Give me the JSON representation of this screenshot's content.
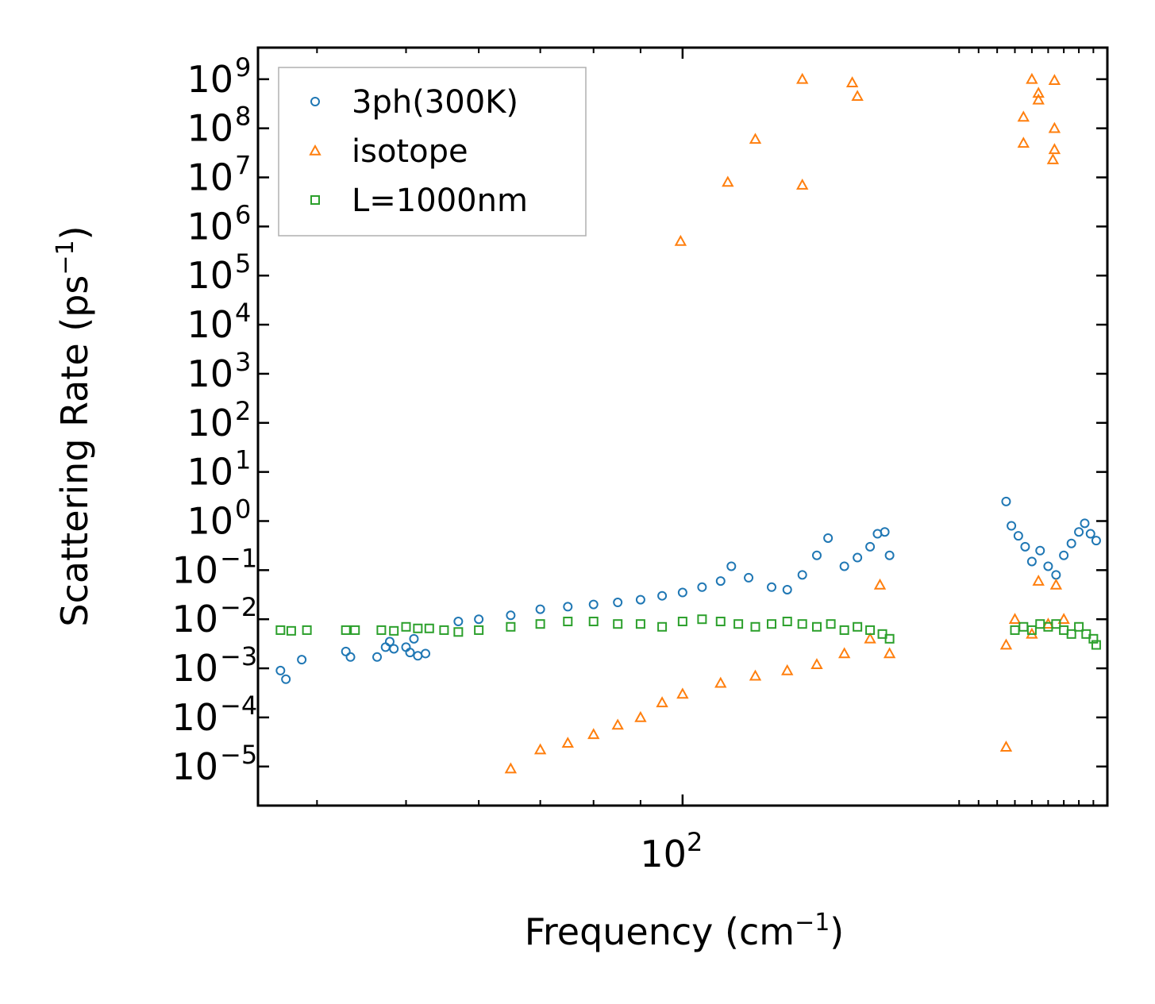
{
  "chart_data": {
    "type": "scatter",
    "xscale": "log",
    "yscale": "log",
    "xlim": [
      34.5,
      290
    ],
    "ylim": [
      1.6e-06,
      4400000000.0
    ],
    "xlabel": "Frequency (cm",
    "xlabel_sup": "−1",
    "xlabel_end": ")",
    "ylabel": "Scattering Rate (ps",
    "ylabel_sup": "−1",
    "ylabel_end": ")",
    "x_ticks": [
      {
        "base": "10",
        "exp": "2",
        "value": 100
      }
    ],
    "y_ticks": [
      {
        "base": "10",
        "exp": "9",
        "value": 1000000000.0
      },
      {
        "base": "10",
        "exp": "8",
        "value": 100000000.0
      },
      {
        "base": "10",
        "exp": "7",
        "value": 10000000.0
      },
      {
        "base": "10",
        "exp": "6",
        "value": 1000000.0
      },
      {
        "base": "10",
        "exp": "5",
        "value": 100000.0
      },
      {
        "base": "10",
        "exp": "4",
        "value": 10000.0
      },
      {
        "base": "10",
        "exp": "3",
        "value": 1000.0
      },
      {
        "base": "10",
        "exp": "2",
        "value": 100.0
      },
      {
        "base": "10",
        "exp": "1",
        "value": 10.0
      },
      {
        "base": "10",
        "exp": "0",
        "value": 1
      },
      {
        "base": "10",
        "exp": "−1",
        "value": 0.1
      },
      {
        "base": "10",
        "exp": "−2",
        "value": 0.01
      },
      {
        "base": "10",
        "exp": "−3",
        "value": 0.001
      },
      {
        "base": "10",
        "exp": "−4",
        "value": 0.0001
      },
      {
        "base": "10",
        "exp": "−5",
        "value": 1e-05
      }
    ],
    "legend_position": "top-left",
    "series": [
      {
        "name": "3ph(300K)",
        "color": "#1f77b4",
        "marker": "circle",
        "points": [
          [
            36.5,
            0.0009
          ],
          [
            37.0,
            0.0006
          ],
          [
            38.5,
            0.0015
          ],
          [
            43.0,
            0.0022
          ],
          [
            43.5,
            0.0017
          ],
          [
            46.5,
            0.0017
          ],
          [
            47.5,
            0.0027
          ],
          [
            48.0,
            0.0035
          ],
          [
            48.5,
            0.0025
          ],
          [
            50.0,
            0.0027
          ],
          [
            50.5,
            0.0021
          ],
          [
            51.5,
            0.0018
          ],
          [
            51.0,
            0.004
          ],
          [
            52.5,
            0.002
          ],
          [
            57.0,
            0.009
          ],
          [
            60.0,
            0.01
          ],
          [
            65.0,
            0.012
          ],
          [
            70.0,
            0.016
          ],
          [
            75.0,
            0.018
          ],
          [
            80.0,
            0.02
          ],
          [
            85.0,
            0.022
          ],
          [
            90.0,
            0.025
          ],
          [
            95.0,
            0.03
          ],
          [
            100.0,
            0.035
          ],
          [
            105.0,
            0.045
          ],
          [
            110.0,
            0.06
          ],
          [
            113.0,
            0.12
          ],
          [
            118.0,
            0.07
          ],
          [
            125.0,
            0.045
          ],
          [
            130.0,
            0.04
          ],
          [
            135.0,
            0.08
          ],
          [
            140.0,
            0.2
          ],
          [
            144.0,
            0.45
          ],
          [
            150.0,
            0.12
          ],
          [
            155.0,
            0.18
          ],
          [
            160.0,
            0.3
          ],
          [
            163.0,
            0.55
          ],
          [
            166.0,
            0.6
          ],
          [
            168.0,
            0.2
          ],
          [
            225.0,
            2.5
          ],
          [
            228.0,
            0.8
          ],
          [
            232.0,
            0.5
          ],
          [
            236.0,
            0.3
          ],
          [
            240.0,
            0.15
          ],
          [
            245.0,
            0.25
          ],
          [
            250.0,
            0.12
          ],
          [
            255.0,
            0.08
          ],
          [
            260.0,
            0.2
          ],
          [
            265.0,
            0.35
          ],
          [
            270.0,
            0.6
          ],
          [
            274.0,
            0.9
          ],
          [
            278.0,
            0.55
          ],
          [
            282.0,
            0.4
          ]
        ]
      },
      {
        "name": "isotope",
        "color": "#ff7f0e",
        "marker": "triangle",
        "points": [
          [
            99.5,
            500000
          ],
          [
            112.0,
            8000000
          ],
          [
            120.0,
            60000000
          ],
          [
            135.0,
            7000000
          ],
          [
            135.0,
            1000000000
          ],
          [
            153.0,
            850000000
          ],
          [
            155.0,
            450000000
          ],
          [
            235.0,
            170000000
          ],
          [
            235.0,
            50000000
          ],
          [
            240.0,
            1000000000
          ],
          [
            244.0,
            520000000
          ],
          [
            244.0,
            380000000
          ],
          [
            254.0,
            950000000
          ],
          [
            254.0,
            100000000
          ],
          [
            254.0,
            37000000
          ],
          [
            253.0,
            23000000
          ],
          [
            65.0,
            9e-06
          ],
          [
            70.0,
            2.2e-05
          ],
          [
            75.0,
            3e-05
          ],
          [
            80.0,
            4.5e-05
          ],
          [
            85.0,
            7e-05
          ],
          [
            90.0,
            0.0001
          ],
          [
            95.0,
            0.0002
          ],
          [
            100.0,
            0.0003
          ],
          [
            110.0,
            0.0005
          ],
          [
            120.0,
            0.0007
          ],
          [
            130.0,
            0.0009
          ],
          [
            140.0,
            0.0012
          ],
          [
            150.0,
            0.002
          ],
          [
            160.0,
            0.004
          ],
          [
            164.0,
            0.05
          ],
          [
            168.0,
            0.002
          ],
          [
            225.0,
            0.003
          ],
          [
            230.0,
            0.01
          ],
          [
            240.0,
            0.005
          ],
          [
            244.0,
            0.06
          ],
          [
            250.0,
            0.008
          ],
          [
            255.0,
            0.05
          ],
          [
            260.0,
            0.01
          ],
          [
            225.0,
            2.5e-05
          ]
        ]
      },
      {
        "name": "L=1000nm",
        "color": "#2ca02c",
        "marker": "square",
        "points": [
          [
            36.5,
            0.006
          ],
          [
            37.5,
            0.0058
          ],
          [
            39.0,
            0.006
          ],
          [
            43.0,
            0.006
          ],
          [
            44.0,
            0.006
          ],
          [
            47.0,
            0.006
          ],
          [
            48.5,
            0.0058
          ],
          [
            50.0,
            0.007
          ],
          [
            51.5,
            0.0065
          ],
          [
            53.0,
            0.0065
          ],
          [
            55.0,
            0.006
          ],
          [
            57.0,
            0.0055
          ],
          [
            60.0,
            0.006
          ],
          [
            65.0,
            0.007
          ],
          [
            70.0,
            0.008
          ],
          [
            75.0,
            0.009
          ],
          [
            80.0,
            0.009
          ],
          [
            85.0,
            0.008
          ],
          [
            90.0,
            0.008
          ],
          [
            95.0,
            0.007
          ],
          [
            100.0,
            0.009
          ],
          [
            105.0,
            0.01
          ],
          [
            110.0,
            0.009
          ],
          [
            115.0,
            0.008
          ],
          [
            120.0,
            0.007
          ],
          [
            125.0,
            0.008
          ],
          [
            130.0,
            0.009
          ],
          [
            135.0,
            0.008
          ],
          [
            140.0,
            0.007
          ],
          [
            145.0,
            0.008
          ],
          [
            150.0,
            0.006
          ],
          [
            155.0,
            0.007
          ],
          [
            160.0,
            0.006
          ],
          [
            165.0,
            0.005
          ],
          [
            168.0,
            0.004
          ],
          [
            230.0,
            0.006
          ],
          [
            235.0,
            0.007
          ],
          [
            240.0,
            0.006
          ],
          [
            245.0,
            0.008
          ],
          [
            250.0,
            0.007
          ],
          [
            255.0,
            0.008
          ],
          [
            260.0,
            0.006
          ],
          [
            265.0,
            0.005
          ],
          [
            270.0,
            0.007
          ],
          [
            275.0,
            0.005
          ],
          [
            280.0,
            0.004
          ],
          [
            282.0,
            0.003
          ]
        ]
      }
    ]
  }
}
